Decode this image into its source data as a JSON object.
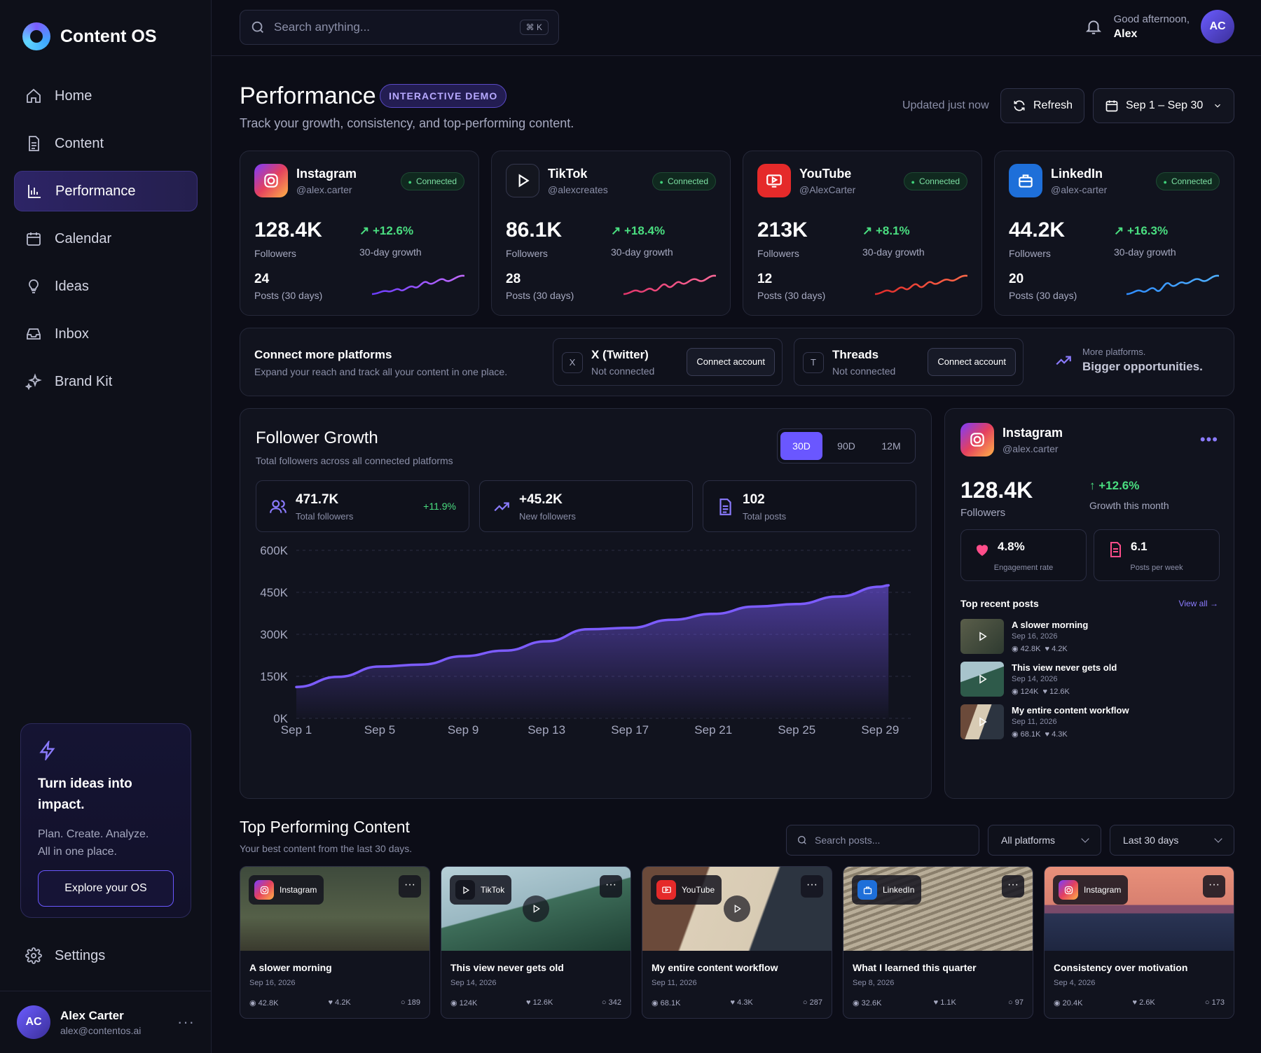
{
  "app": {
    "name": "Content OS"
  },
  "nav": {
    "items": [
      {
        "label": "Home",
        "icon": "home-icon"
      },
      {
        "label": "Content",
        "icon": "document-icon"
      },
      {
        "label": "Performance",
        "icon": "bar-chart-icon",
        "active": true
      },
      {
        "label": "Calendar",
        "icon": "calendar-icon"
      },
      {
        "label": "Ideas",
        "icon": "lightbulb-icon"
      },
      {
        "label": "Inbox",
        "icon": "inbox-icon"
      },
      {
        "label": "Brand Kit",
        "icon": "sparkle-icon"
      }
    ]
  },
  "promo": {
    "title": "Turn ideas into impact.",
    "text1": "Plan. Create. Analyze.",
    "text2": "All in one place.",
    "button": "Explore your OS"
  },
  "settings": {
    "label": "Settings"
  },
  "user": {
    "initials": "AC",
    "name": "Alex Carter",
    "email": "alex@contentos.ai"
  },
  "topbar": {
    "search_placeholder": "Search anything...",
    "shortcut": "⌘ K",
    "greeting": "Good afternoon,",
    "name": "Alex",
    "initials": "AC"
  },
  "page": {
    "title": "Performance",
    "badge": "INTERACTIVE DEMO",
    "subtitle": "Track your growth, consistency, and top-performing content.",
    "updated": "Updated just now",
    "refresh": "Refresh",
    "date_range": "Sep 1 – Sep 30"
  },
  "platforms": [
    {
      "name": "Instagram",
      "handle": "@alex.carter",
      "status": "Connected",
      "followers": "128.4K",
      "followers_label": "Followers",
      "growth": "+12.6%",
      "growth_label": "30-day growth",
      "posts": "24",
      "posts_label": "Posts (30 days)",
      "color": "#e4405f"
    },
    {
      "name": "TikTok",
      "handle": "@alexcreates",
      "status": "Connected",
      "followers": "86.1K",
      "followers_label": "Followers",
      "growth": "+18.4%",
      "growth_label": "30-day growth",
      "posts": "28",
      "posts_label": "Posts (30 days)",
      "color": "#ff3b6b"
    },
    {
      "name": "YouTube",
      "handle": "@AlexCarter",
      "status": "Connected",
      "followers": "213K",
      "followers_label": "Followers",
      "growth": "+8.1%",
      "growth_label": "30-day growth",
      "posts": "12",
      "posts_label": "Posts (30 days)",
      "color": "#ff3030"
    },
    {
      "name": "LinkedIn",
      "handle": "@alex-carter",
      "status": "Connected",
      "followers": "44.2K",
      "followers_label": "Followers",
      "growth": "+16.3%",
      "growth_label": "30-day growth",
      "posts": "20",
      "posts_label": "Posts (30 days)",
      "color": "#2f8cff"
    }
  ],
  "connect": {
    "title": "Connect more platforms",
    "subtitle": "Expand your reach and track all your content in one place.",
    "items": [
      {
        "icon": "X",
        "name": "X (Twitter)",
        "status": "Not connected",
        "button": "Connect account"
      },
      {
        "icon": "T",
        "name": "Threads",
        "status": "Not connected",
        "button": "Connect account"
      }
    ],
    "more_small": "More platforms.",
    "more_big": "Bigger opportunities."
  },
  "growth": {
    "title": "Follower Growth",
    "subtitle": "Total followers across all connected platforms",
    "ranges": [
      "30D",
      "90D",
      "12M"
    ],
    "active_range": "30D",
    "stats": [
      {
        "value": "471.7K",
        "label": "Total followers",
        "change": "+11.9%"
      },
      {
        "value": "+45.2K",
        "label": "New followers"
      },
      {
        "value": "102",
        "label": "Total posts"
      }
    ]
  },
  "chart_data": {
    "type": "area",
    "title": "Follower Growth",
    "xlabel": "",
    "ylabel": "",
    "ylim": [
      0,
      600000
    ],
    "yticks": [
      "600K",
      "450K",
      "300K",
      "150K",
      "0K"
    ],
    "xticks": [
      "Sep 1",
      "Sep 5",
      "Sep 9",
      "Sep 13",
      "Sep 17",
      "Sep 21",
      "Sep 25",
      "Sep 29"
    ],
    "x": [
      1,
      3,
      5,
      7,
      9,
      11,
      13,
      15,
      17,
      19,
      21,
      23,
      25,
      27,
      29,
      29.4
    ],
    "values": [
      112000,
      148000,
      185000,
      192000,
      222000,
      242000,
      275000,
      318000,
      323000,
      352000,
      373000,
      399000,
      408000,
      435000,
      470000,
      475000
    ],
    "grid": true,
    "color": "#7c5cff"
  },
  "ig_panel": {
    "name": "Instagram",
    "handle": "@alex.carter",
    "followers": "128.4K",
    "followers_label": "Followers",
    "growth": "+12.6%",
    "growth_label": "Growth this month",
    "engagement": "4.8%",
    "engagement_label": "Engagement rate",
    "posts_week": "6.1",
    "posts_week_label": "Posts per week",
    "top_label": "Top recent posts",
    "view_all": "View all →",
    "posts": [
      {
        "title": "A slower morning",
        "date": "Sep 16, 2026",
        "views": "42.8K",
        "likes": "4.2K"
      },
      {
        "title": "This view never gets old",
        "date": "Sep 14, 2026",
        "views": "124K",
        "likes": "12.6K"
      },
      {
        "title": "My entire content workflow",
        "date": "Sep 11, 2026",
        "views": "68.1K",
        "likes": "4.3K"
      }
    ]
  },
  "top_content": {
    "title": "Top Performing Content",
    "subtitle": "Your best content from the last 30 days.",
    "search_placeholder": "Search posts...",
    "platform_filter": "All platforms",
    "period_filter": "Last 30 days",
    "cards": [
      {
        "platform": "Instagram",
        "title": "A slower morning",
        "date": "Sep 16, 2026",
        "views": "42.8K",
        "likes": "4.2K",
        "comments": "189"
      },
      {
        "platform": "TikTok",
        "title": "This view never gets old",
        "date": "Sep 14, 2026",
        "views": "124K",
        "likes": "12.6K",
        "comments": "342"
      },
      {
        "platform": "YouTube",
        "title": "My entire content workflow",
        "date": "Sep 11, 2026",
        "views": "68.1K",
        "likes": "4.3K",
        "comments": "287"
      },
      {
        "platform": "LinkedIn",
        "title": "What I learned this quarter",
        "date": "Sep 8, 2026",
        "views": "32.6K",
        "likes": "1.1K",
        "comments": "97"
      },
      {
        "platform": "Instagram",
        "title": "Consistency over motivation",
        "date": "Sep 4, 2026",
        "views": "20.4K",
        "likes": "2.6K",
        "comments": "173"
      }
    ]
  }
}
